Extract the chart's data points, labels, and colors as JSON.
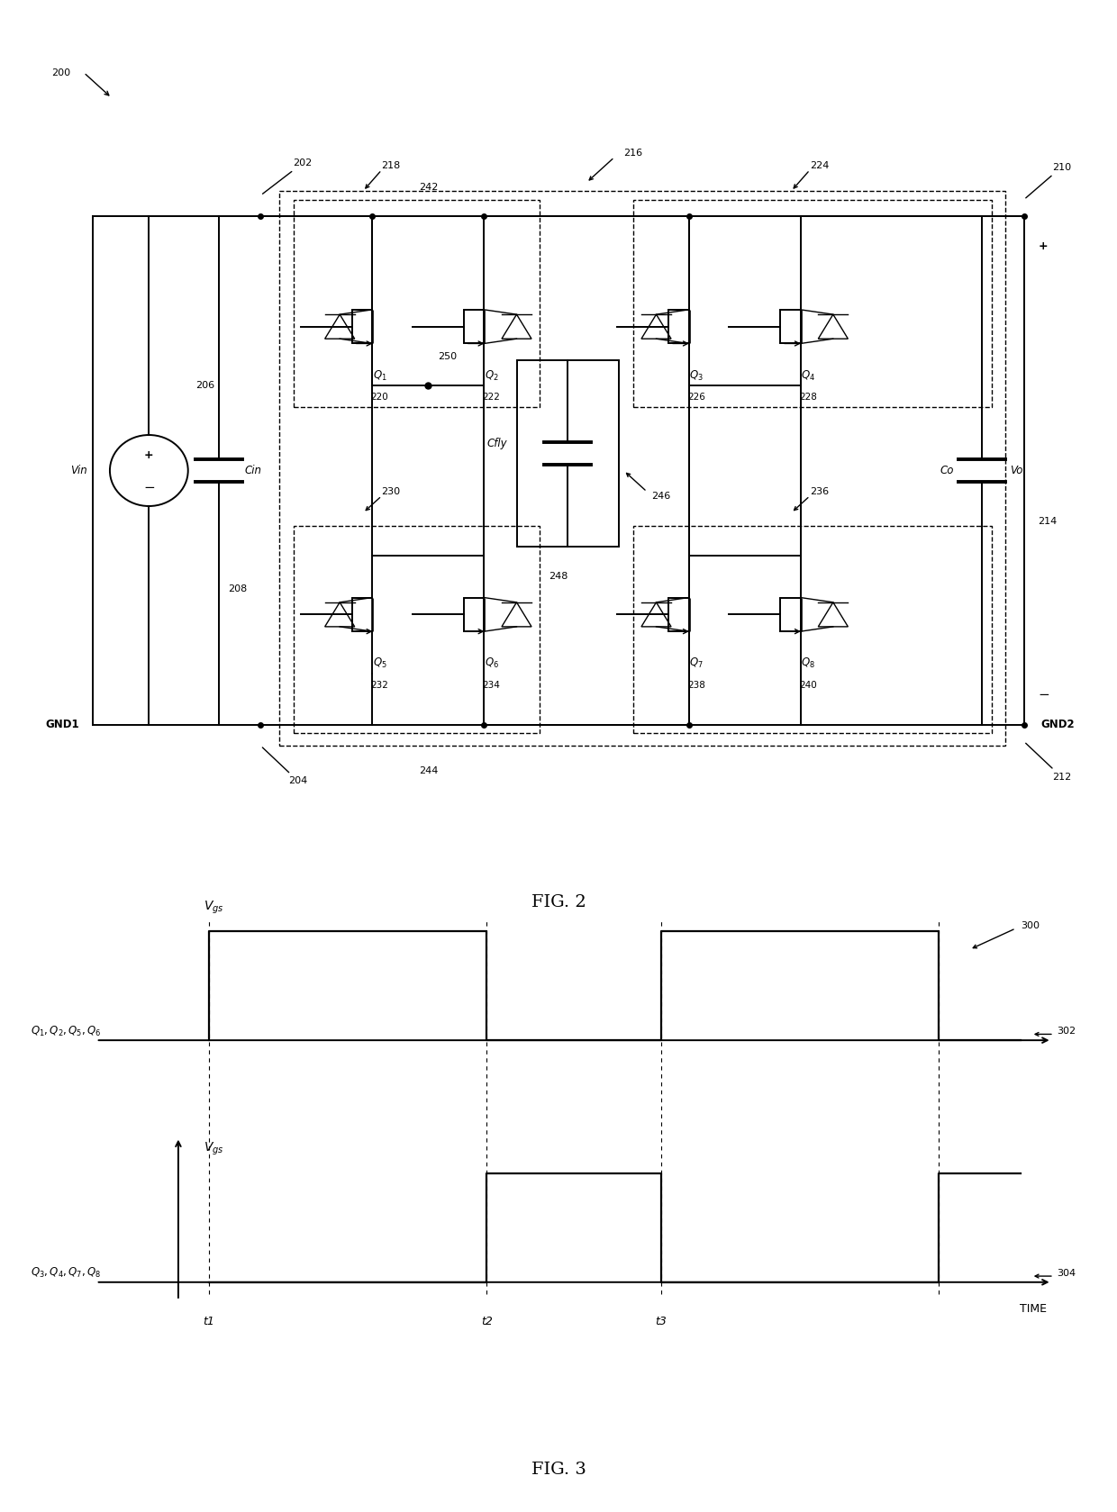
{
  "fig_width": 12.4,
  "fig_height": 16.79,
  "bg_color": "#ffffff",
  "fig2_caption": "FIG. 2",
  "fig3_caption": "FIG. 3",
  "ref_nums": {
    "200": "200",
    "202": "202",
    "204": "204",
    "206": "206",
    "208": "208",
    "210": "210",
    "212": "212",
    "214": "214",
    "216": "216",
    "218": "218",
    "220": "220",
    "222": "222",
    "224": "224",
    "226": "226",
    "228": "228",
    "230": "230",
    "232": "232",
    "234": "234",
    "236": "236",
    "238": "238",
    "240": "240",
    "242": "242",
    "244": "244",
    "246": "246",
    "248": "248",
    "250": "250",
    "300": "300",
    "302": "302",
    "304": "304"
  },
  "q_labels": [
    "Q₁",
    "Q₂",
    "Q₃",
    "Q₄",
    "Q₅",
    "Q₆",
    "Q₇",
    "Q₈"
  ],
  "q_nums": [
    "220",
    "222",
    "226",
    "228",
    "232",
    "234",
    "238",
    "240"
  ],
  "waveform1_label": "Q₁, Q₂, Q₅, Q₆",
  "waveform2_label": "Q₃, Q₄, Q₇, Q₈",
  "time_labels": [
    "t1",
    "t2",
    "t3"
  ],
  "time_label_TIME": "TIME",
  "vgs_label": "Vɡₛ",
  "ref_302": "302",
  "ref_304": "304",
  "ref_300": "300"
}
